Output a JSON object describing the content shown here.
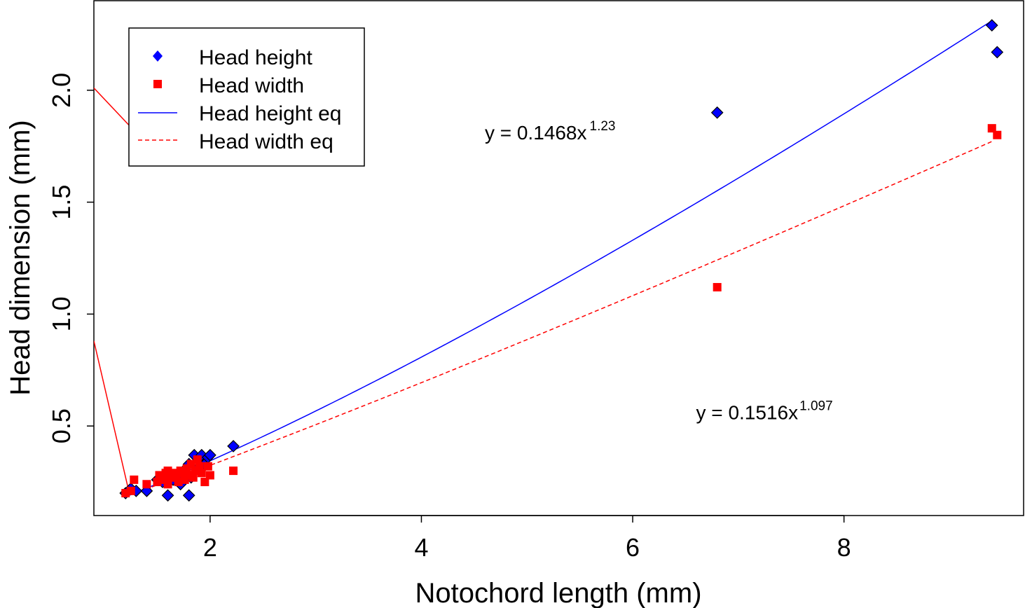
{
  "chart_data": {
    "type": "scatter",
    "xlabel": "Notochord length (mm)",
    "ylabel": "Head dimension (mm)",
    "xlim": [
      0.9,
      9.7
    ],
    "ylim": [
      0.1,
      2.4
    ],
    "xticks": [
      2,
      4,
      6,
      8
    ],
    "yticks": [
      0.5,
      1.0,
      1.5,
      2.0
    ],
    "xtick_labels": [
      "2",
      "4",
      "6",
      "8"
    ],
    "ytick_labels": [
      "0.5",
      "1.0",
      "1.5",
      "2.0"
    ],
    "grid": false,
    "legend_position": "top-left",
    "series": [
      {
        "name": "Head height",
        "kind": "points",
        "marker": "diamond",
        "color": "#0000ff",
        "points": [
          [
            1.2,
            0.2
          ],
          [
            1.25,
            0.22
          ],
          [
            1.3,
            0.21
          ],
          [
            1.4,
            0.21
          ],
          [
            1.5,
            0.26
          ],
          [
            1.55,
            0.25
          ],
          [
            1.6,
            0.19
          ],
          [
            1.6,
            0.27
          ],
          [
            1.65,
            0.26
          ],
          [
            1.7,
            0.28
          ],
          [
            1.72,
            0.24
          ],
          [
            1.75,
            0.3
          ],
          [
            1.78,
            0.29
          ],
          [
            1.8,
            0.19
          ],
          [
            1.8,
            0.33
          ],
          [
            1.82,
            0.27
          ],
          [
            1.85,
            0.37
          ],
          [
            1.88,
            0.31
          ],
          [
            1.9,
            0.35
          ],
          [
            1.92,
            0.37
          ],
          [
            1.95,
            0.33
          ],
          [
            1.98,
            0.36
          ],
          [
            2.0,
            0.37
          ],
          [
            2.22,
            0.41
          ],
          [
            6.8,
            1.9
          ],
          [
            9.4,
            2.29
          ],
          [
            9.45,
            2.17
          ]
        ]
      },
      {
        "name": "Head width",
        "kind": "points",
        "marker": "square",
        "color": "#ff0000",
        "points": [
          [
            1.2,
            0.2
          ],
          [
            1.25,
            0.21
          ],
          [
            1.28,
            0.26
          ],
          [
            1.4,
            0.24
          ],
          [
            1.5,
            0.25
          ],
          [
            1.52,
            0.28
          ],
          [
            1.55,
            0.26
          ],
          [
            1.58,
            0.29
          ],
          [
            1.6,
            0.3
          ],
          [
            1.6,
            0.24
          ],
          [
            1.62,
            0.27
          ],
          [
            1.65,
            0.29
          ],
          [
            1.68,
            0.27
          ],
          [
            1.7,
            0.25
          ],
          [
            1.72,
            0.3
          ],
          [
            1.75,
            0.29
          ],
          [
            1.76,
            0.26
          ],
          [
            1.78,
            0.31
          ],
          [
            1.8,
            0.28
          ],
          [
            1.82,
            0.33
          ],
          [
            1.84,
            0.27
          ],
          [
            1.86,
            0.3
          ],
          [
            1.88,
            0.35
          ],
          [
            1.9,
            0.32
          ],
          [
            1.92,
            0.29
          ],
          [
            1.95,
            0.25
          ],
          [
            1.98,
            0.32
          ],
          [
            2.0,
            0.28
          ],
          [
            2.22,
            0.3
          ],
          [
            6.8,
            1.12
          ],
          [
            9.4,
            1.83
          ],
          [
            9.45,
            1.8
          ]
        ]
      },
      {
        "name": "Head height eq",
        "kind": "line",
        "style": "solid",
        "color": "#0000ff",
        "equation": "y = 0.1468x^1.23",
        "coefficient": 0.1468,
        "exponent": 1.23,
        "x_range": [
          1.2,
          9.4
        ]
      },
      {
        "name": "Head width eq",
        "kind": "line",
        "style": "dashed",
        "color": "#ff0000",
        "equation": "y = 0.1516x^1.097",
        "coefficient": 0.1516,
        "exponent": 1.097,
        "x_range": [
          1.2,
          9.4
        ]
      }
    ],
    "annotations": [
      {
        "prefix": "y = 0.1468x",
        "exponent": "1.23",
        "x": 4.6,
        "y": 1.78
      },
      {
        "prefix": "y = 0.1516x",
        "exponent": "1.097",
        "x": 6.6,
        "y": 0.53
      }
    ],
    "leader_lines": [
      {
        "from": [
          0.9,
          2.01
        ],
        "to": [
          1.36,
          1.78
        ]
      },
      {
        "from": [
          0.9,
          0.88
        ],
        "to": [
          1.23,
          0.21
        ]
      }
    ]
  },
  "colors": {
    "height": "#0000ff",
    "width": "#ff0000",
    "axis": "#000000",
    "background": "#ffffff"
  }
}
